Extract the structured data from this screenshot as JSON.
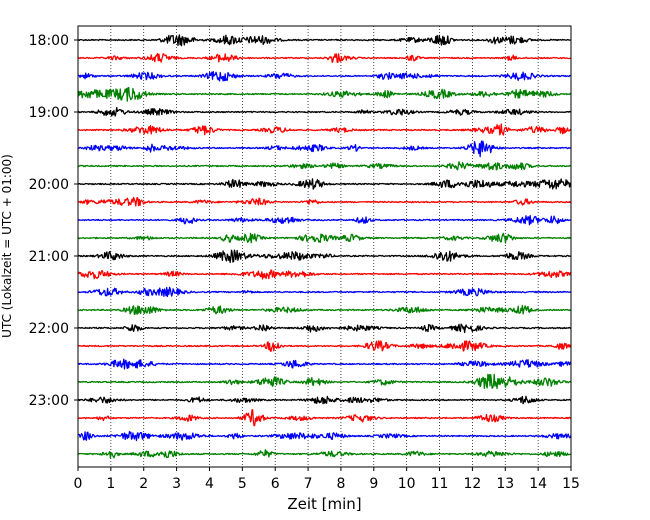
{
  "chart_data": {
    "type": "line",
    "title": "",
    "xlabel": "Zeit  [min]",
    "ylabel": "UTC (Lokalzeit = UTC + 01:00)",
    "xlim": [
      0,
      15
    ],
    "x_ticks": [
      0,
      1,
      2,
      3,
      4,
      5,
      6,
      7,
      8,
      9,
      10,
      11,
      12,
      13,
      14,
      15
    ],
    "y_ticks": [
      "18:00",
      "19:00",
      "20:00",
      "21:00",
      "22:00",
      "23:00"
    ],
    "grid": "vertical dotted at each minute",
    "rows_per_hour": 4,
    "row_minutes": 15,
    "start_time": "18:00",
    "row_labels": [
      "18:00",
      "18:15",
      "18:30",
      "18:45",
      "19:00",
      "19:15",
      "19:30",
      "19:45",
      "20:00",
      "20:15",
      "20:30",
      "20:45",
      "21:00",
      "21:15",
      "21:30",
      "21:45",
      "22:00",
      "22:15",
      "22:30",
      "22:45",
      "23:00",
      "23:15",
      "23:30",
      "23:45"
    ],
    "series_colors": [
      "#000000",
      "#ff0000",
      "#0000ff",
      "#008000"
    ]
  }
}
